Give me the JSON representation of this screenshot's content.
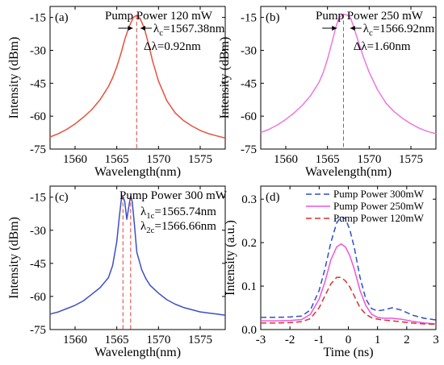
{
  "chart_data": [
    {
      "type": "line",
      "panel_label": "(a)",
      "annotation_title": "Pump Power 120 mW",
      "annotations": [
        "λc=1567.38nm",
        "Δλ=0.92nm"
      ],
      "xlabel": "Wavelength(nm)",
      "ylabel": "Intensity (dBm)",
      "xlim": [
        1557,
        1578
      ],
      "ylim": [
        -75,
        -10
      ],
      "xticks": [
        1560,
        1565,
        1570,
        1575
      ],
      "yticks": [
        -75,
        -60,
        -45,
        -30,
        -15
      ],
      "color": "#e8503f",
      "peaks": [
        1567.38
      ],
      "peak_level": -14,
      "series": [
        {
          "x": [
            1557,
            1558,
            1559,
            1560,
            1561,
            1562,
            1563,
            1564,
            1564.5,
            1565,
            1565.5,
            1566,
            1566.5,
            1567,
            1567.38,
            1567.8,
            1568.3,
            1568.8,
            1569.3,
            1570,
            1571,
            1572,
            1573,
            1574,
            1575,
            1576,
            1577,
            1578
          ],
          "y": [
            -69.5,
            -68,
            -66,
            -63.5,
            -60.5,
            -57,
            -52.5,
            -46.5,
            -42.5,
            -37.5,
            -31.5,
            -24.5,
            -19,
            -15,
            -14,
            -15.5,
            -20,
            -27,
            -35,
            -44,
            -53,
            -58.5,
            -62,
            -64.5,
            -66.5,
            -68,
            -69,
            -70
          ]
        }
      ]
    },
    {
      "type": "line",
      "panel_label": "(b)",
      "annotation_title": "Pump Power 250 mW",
      "annotations": [
        "λc=1566.92nm",
        "Δλ=1.60nm"
      ],
      "xlabel": "Wavelength(nm)",
      "ylabel": "Intensity (dBm)",
      "xlim": [
        1557,
        1578
      ],
      "ylim": [
        -75,
        -10
      ],
      "xticks": [
        1560,
        1565,
        1570,
        1575
      ],
      "yticks": [
        -75,
        -60,
        -45,
        -30,
        -15
      ],
      "color": "#ee77e0",
      "peaks": [
        1566.92
      ],
      "peak_level": -13.5,
      "series": [
        {
          "x": [
            1557,
            1558,
            1559,
            1560,
            1561,
            1562,
            1563,
            1564,
            1564.5,
            1565,
            1565.5,
            1566,
            1566.4,
            1566.92,
            1567.4,
            1567.8,
            1568.2,
            1568.7,
            1569.3,
            1570,
            1571,
            1572,
            1573,
            1574,
            1575,
            1576,
            1577,
            1578
          ],
          "y": [
            -67.5,
            -66,
            -64,
            -61.5,
            -58.5,
            -55,
            -50.5,
            -44.5,
            -40,
            -34,
            -27,
            -19.5,
            -15,
            -13.5,
            -14,
            -15.5,
            -20,
            -26,
            -33,
            -40,
            -48,
            -54,
            -58,
            -61,
            -63.5,
            -65.5,
            -67,
            -68
          ]
        }
      ]
    },
    {
      "type": "line",
      "panel_label": "(c)",
      "annotation_title": "Pump Power 300 mW",
      "annotations": [
        "λ1c=1565.74nm",
        "λ2c=1566.66nm"
      ],
      "xlabel": "Wavelength(nm)",
      "ylabel": "Intensity (dBm)",
      "xlim": [
        1557,
        1578
      ],
      "ylim": [
        -75,
        -10
      ],
      "xticks": [
        1560,
        1565,
        1570,
        1575
      ],
      "yticks": [
        -75,
        -60,
        -45,
        -30,
        -15
      ],
      "color": "#3d4fc4",
      "peaks": [
        1565.74,
        1566.66
      ],
      "peak_level": -14.5,
      "series": [
        {
          "x": [
            1557,
            1558,
            1559,
            1560,
            1561,
            1562,
            1563,
            1564,
            1564.5,
            1565,
            1565.3,
            1565.55,
            1565.74,
            1565.95,
            1566.2,
            1566.45,
            1566.66,
            1566.85,
            1567.1,
            1567.4,
            1568,
            1568.5,
            1569,
            1570,
            1571,
            1572,
            1573,
            1574,
            1575,
            1576,
            1577,
            1578
          ],
          "y": [
            -68,
            -67,
            -65.5,
            -64,
            -62,
            -59,
            -56,
            -51.5,
            -46,
            -35,
            -24,
            -16,
            -14.5,
            -17,
            -25,
            -19,
            -14.5,
            -17,
            -27,
            -40,
            -48,
            -52,
            -55,
            -58.5,
            -61.5,
            -63.5,
            -65,
            -66,
            -67,
            -67.5,
            -68,
            -68.5
          ]
        }
      ]
    },
    {
      "type": "line",
      "panel_label": "(d)",
      "xlabel": "Time (ns)",
      "ylabel": "Intensity (a.u.)",
      "xlim": [
        -3,
        3
      ],
      "ylim": [
        0,
        0.33
      ],
      "xticks": [
        -3,
        -2,
        -1,
        0,
        1,
        2,
        3
      ],
      "yticks": [
        0.0,
        0.1,
        0.2,
        0.3
      ],
      "legend_position": "top-right",
      "series": [
        {
          "name": "Pump Power 300mW",
          "color": "#2d4fc8",
          "dash": "dashed",
          "x": [
            -3,
            -2.5,
            -2,
            -1.6,
            -1.3,
            -1.0,
            -0.8,
            -0.6,
            -0.4,
            -0.25,
            -0.1,
            0.05,
            0.2,
            0.4,
            0.6,
            0.8,
            1.0,
            1.2,
            1.5,
            1.8,
            2.2,
            2.6,
            3
          ],
          "y": [
            0.028,
            0.028,
            0.029,
            0.031,
            0.045,
            0.09,
            0.14,
            0.2,
            0.245,
            0.26,
            0.255,
            0.23,
            0.19,
            0.12,
            0.07,
            0.048,
            0.043,
            0.045,
            0.05,
            0.045,
            0.033,
            0.026,
            0.022
          ]
        },
        {
          "name": "Pump Power 250mW",
          "color": "#ee55dd",
          "dash": "solid",
          "x": [
            -3,
            -2.5,
            -2,
            -1.6,
            -1.3,
            -1.0,
            -0.8,
            -0.6,
            -0.4,
            -0.25,
            -0.1,
            0.05,
            0.2,
            0.4,
            0.6,
            0.8,
            1.0,
            1.2,
            1.5,
            1.8,
            2.2,
            2.6,
            3
          ],
          "y": [
            0.02,
            0.02,
            0.021,
            0.023,
            0.035,
            0.07,
            0.11,
            0.16,
            0.19,
            0.197,
            0.19,
            0.17,
            0.14,
            0.09,
            0.055,
            0.035,
            0.028,
            0.026,
            0.026,
            0.024,
            0.019,
            0.015,
            0.013
          ]
        },
        {
          "name": "Pump Power 120mW",
          "color": "#dd3030",
          "dash": "dashed",
          "x": [
            -3,
            -2.5,
            -2,
            -1.6,
            -1.3,
            -1.0,
            -0.8,
            -0.6,
            -0.4,
            -0.25,
            -0.1,
            0.05,
            0.2,
            0.4,
            0.6,
            0.8,
            1.0,
            1.2,
            1.5,
            1.8,
            2.2,
            2.6,
            3
          ],
          "y": [
            0.015,
            0.015,
            0.016,
            0.018,
            0.025,
            0.05,
            0.078,
            0.105,
            0.12,
            0.12,
            0.112,
            0.098,
            0.078,
            0.05,
            0.035,
            0.027,
            0.024,
            0.022,
            0.02,
            0.018,
            0.015,
            0.013,
            0.012
          ]
        }
      ]
    }
  ]
}
